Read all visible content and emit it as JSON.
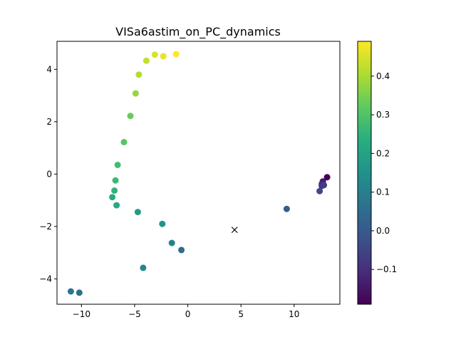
{
  "chart_data": {
    "type": "scatter",
    "title": "VISa6astim_on_PC_dynamics",
    "xlabel": "",
    "ylabel": "",
    "xlim": [
      -12.3,
      14.3
    ],
    "ylim": [
      -4.97,
      5.07
    ],
    "x_ticks": [
      -10,
      -5,
      0,
      5,
      10
    ],
    "x_tick_labels": [
      "−10",
      "−5",
      "0",
      "5",
      "10"
    ],
    "y_ticks": [
      -4,
      -2,
      0,
      2,
      4
    ],
    "y_tick_labels": [
      "−4",
      "−2",
      "0",
      "2",
      "4"
    ],
    "grid": false,
    "colormap": "viridis",
    "colorbar": {
      "range": [
        -0.19,
        0.49
      ],
      "ticks": [
        -0.1,
        0.0,
        0.1,
        0.2,
        0.3,
        0.4
      ],
      "tick_labels": [
        "−0.1",
        "0.0",
        "0.1",
        "0.2",
        "0.3",
        "0.4"
      ]
    },
    "points": [
      {
        "x": 13.1,
        "y": -0.12,
        "c": -0.19
      },
      {
        "x": 12.7,
        "y": -0.28,
        "c": -0.14
      },
      {
        "x": 12.6,
        "y": -0.38,
        "c": -0.11
      },
      {
        "x": 12.6,
        "y": -0.45,
        "c": -0.09
      },
      {
        "x": 12.8,
        "y": -0.42,
        "c": -0.07
      },
      {
        "x": 12.4,
        "y": -0.65,
        "c": -0.04
      },
      {
        "x": 9.3,
        "y": -1.33,
        "c": 0.01
      },
      {
        "x": -0.6,
        "y": -2.9,
        "c": 0.05
      },
      {
        "x": -10.2,
        "y": -4.53,
        "c": 0.06
      },
      {
        "x": -11.0,
        "y": -4.48,
        "c": 0.07
      },
      {
        "x": -1.5,
        "y": -2.63,
        "c": 0.11
      },
      {
        "x": -4.2,
        "y": -3.58,
        "c": 0.12
      },
      {
        "x": -2.4,
        "y": -1.9,
        "c": 0.16
      },
      {
        "x": -4.7,
        "y": -1.45,
        "c": 0.18
      },
      {
        "x": -6.7,
        "y": -1.19,
        "c": 0.22
      },
      {
        "x": -7.1,
        "y": -0.88,
        "c": 0.23
      },
      {
        "x": -6.9,
        "y": -0.63,
        "c": 0.25
      },
      {
        "x": -6.8,
        "y": -0.24,
        "c": 0.27
      },
      {
        "x": -6.6,
        "y": 0.35,
        "c": 0.28
      },
      {
        "x": -6.0,
        "y": 1.22,
        "c": 0.31
      },
      {
        "x": -5.4,
        "y": 2.22,
        "c": 0.33
      },
      {
        "x": -4.9,
        "y": 3.08,
        "c": 0.38
      },
      {
        "x": -4.6,
        "y": 3.8,
        "c": 0.41
      },
      {
        "x": -3.9,
        "y": 4.33,
        "c": 0.43
      },
      {
        "x": -3.1,
        "y": 4.56,
        "c": 0.45
      },
      {
        "x": -2.3,
        "y": 4.5,
        "c": 0.47
      },
      {
        "x": -1.1,
        "y": 4.58,
        "c": 0.49
      }
    ],
    "marker": {
      "x": 4.4,
      "y": -2.13,
      "symbol": "x"
    }
  }
}
